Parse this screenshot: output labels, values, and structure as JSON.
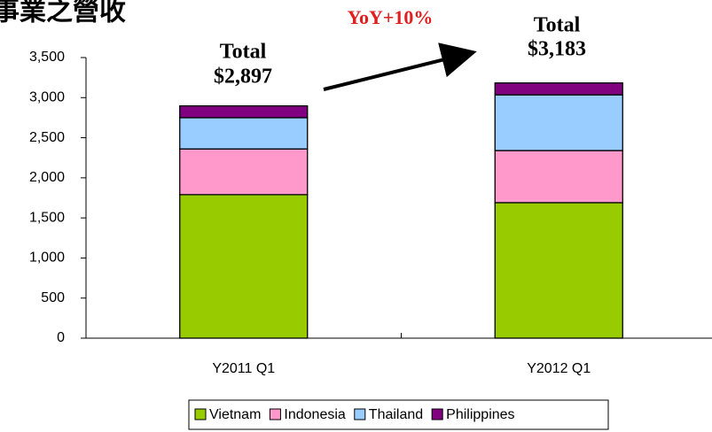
{
  "chart_data": {
    "type": "stacked-bar",
    "title": "事業之營收",
    "categories": [
      "Y2011 Q1",
      "Y2012 Q1"
    ],
    "series": [
      {
        "name": "Vietnam",
        "color": "#99cc00",
        "values": [
          1790,
          1690
        ]
      },
      {
        "name": "Indonesia",
        "color": "#ff99cc",
        "values": [
          570,
          650
        ]
      },
      {
        "name": "Thailand",
        "color": "#99ccff",
        "values": [
          390,
          695
        ]
      },
      {
        "name": "Philippines",
        "color": "#800080",
        "values": [
          147,
          148
        ]
      }
    ],
    "ylim": [
      0,
      3500
    ],
    "yticks": [
      0,
      500,
      {
        "value": 1000,
        "label": "1,000"
      },
      {
        "value": 1500,
        "label": "1,500"
      },
      {
        "value": 2000,
        "label": "2,000"
      },
      {
        "value": 2500,
        "label": "2,500"
      },
      {
        "value": 3000,
        "label": "3,000"
      },
      {
        "value": 3500,
        "label": "3,500"
      }
    ],
    "annotations": [
      "Total",
      "$2,897",
      "Total",
      "$3,183",
      "YoY+10%"
    ],
    "legend": "bottom"
  }
}
